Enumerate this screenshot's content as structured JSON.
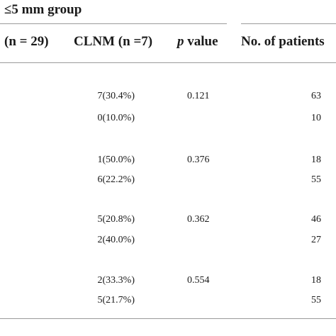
{
  "table": {
    "group_title": "≤5 mm group",
    "headers": {
      "n_col": "(n = 29)",
      "clnm_col": "CLNM (n =7)",
      "p_value_italic": "p",
      "p_value_rest": " value",
      "patients_col": "No. of patients"
    },
    "rows": [
      {
        "clnm": "7(30.4%)",
        "p": "0.121",
        "patients": "63"
      },
      {
        "clnm": "0(10.0%)",
        "p": "",
        "patients": "10"
      },
      {
        "clnm": "1(50.0%)",
        "p": "0.376",
        "patients": "18"
      },
      {
        "clnm": "6(22.2%)",
        "p": "",
        "patients": "55"
      },
      {
        "clnm": "5(20.8%)",
        "p": "0.362",
        "patients": "46"
      },
      {
        "clnm": "2(40.0%)",
        "p": "",
        "patients": "27"
      },
      {
        "clnm": "2(33.3%)",
        "p": "0.554",
        "patients": "18"
      },
      {
        "clnm": "5(21.7%)",
        "p": "",
        "patients": "55"
      }
    ]
  }
}
